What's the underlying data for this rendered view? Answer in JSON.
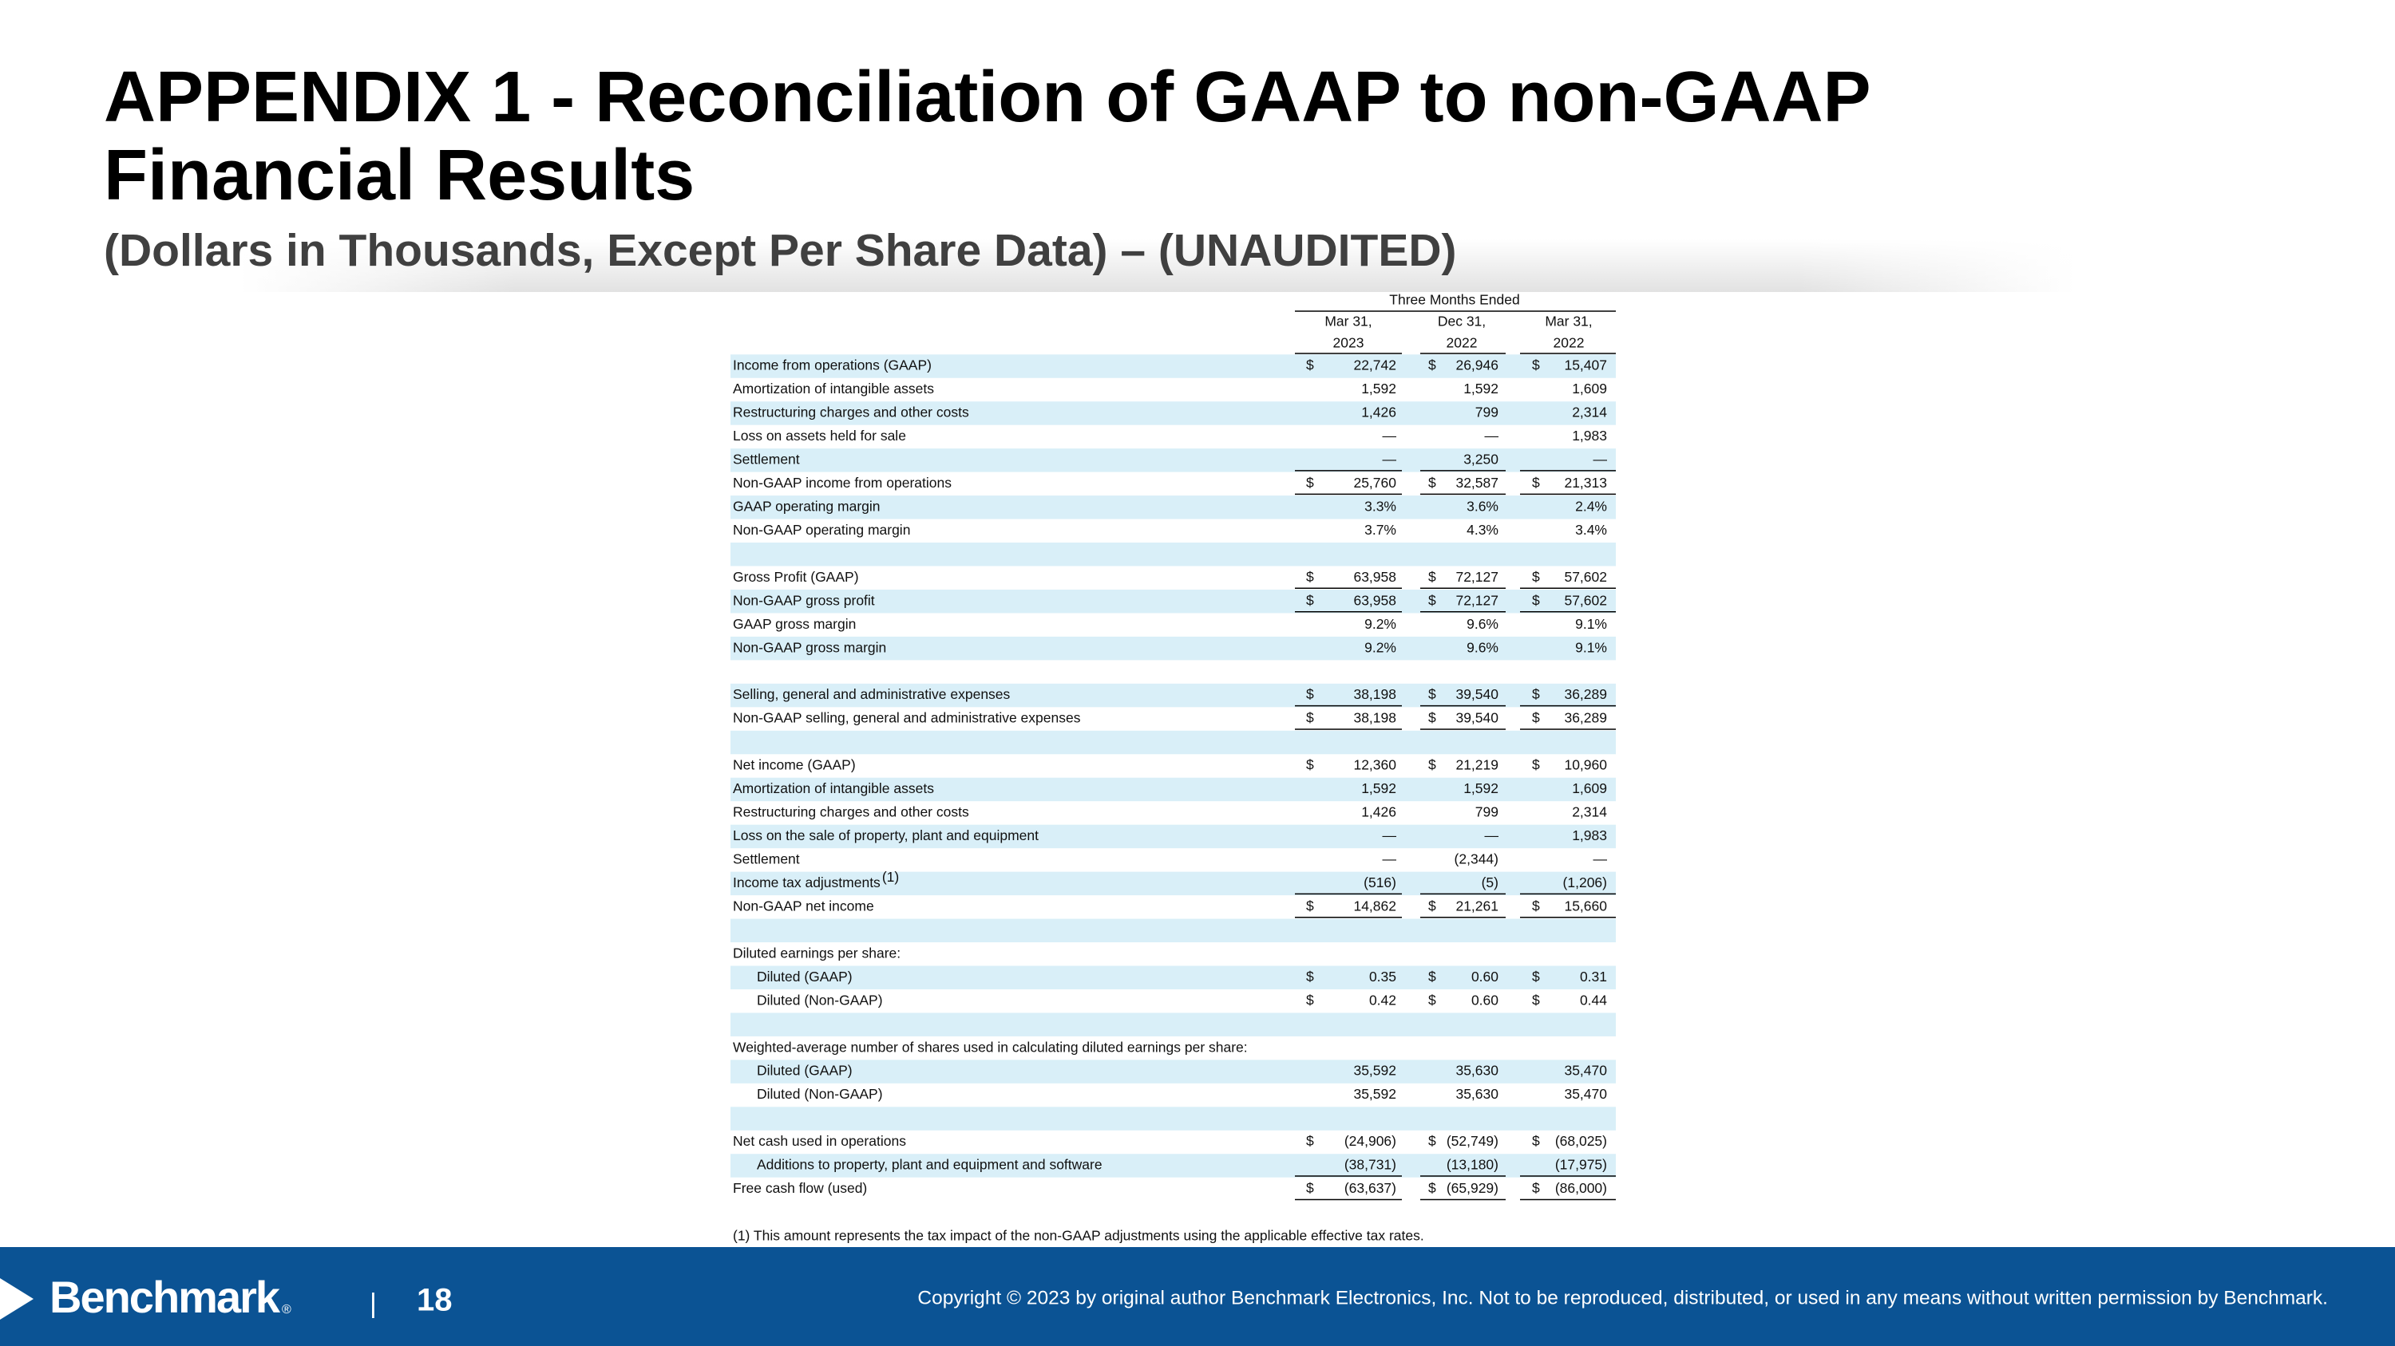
{
  "header": {
    "title_line1": "APPENDIX 1 - Reconciliation of GAAP to non-GAAP",
    "title_line2": "Financial Results",
    "subtitle": "(Dollars in Thousands, Except Per Share Data) – (UNAUDITED)"
  },
  "table": {
    "period_label": "Three Months Ended",
    "columns": [
      {
        "month": "Mar 31,",
        "year": "2023"
      },
      {
        "month": "Dec 31,",
        "year": "2022"
      },
      {
        "month": "Mar 31,",
        "year": "2022"
      }
    ],
    "rows": [
      {
        "label": "Income from operations (GAAP)",
        "currency": "$",
        "values": [
          "22,742",
          "26,946",
          "15,407"
        ]
      },
      {
        "label": "Amortization of intangible assets",
        "values": [
          "1,592",
          "1,592",
          "1,609"
        ]
      },
      {
        "label": "Restructuring charges and other costs",
        "values": [
          "1,426",
          "799",
          "2,314"
        ]
      },
      {
        "label": "Loss on assets held for sale",
        "values": [
          "—",
          "—",
          "1,983"
        ]
      },
      {
        "label": "Settlement",
        "values": [
          "—",
          "3,250",
          "—"
        ]
      },
      {
        "label": "Non-GAAP income from operations",
        "currency": "$",
        "values": [
          "25,760",
          "32,587",
          "21,313"
        ]
      },
      {
        "label": "GAAP operating margin",
        "values": [
          "3.3%",
          "3.6%",
          "2.4%"
        ]
      },
      {
        "label": "Non-GAAP operating margin",
        "values": [
          "3.7%",
          "4.3%",
          "3.4%"
        ]
      },
      {
        "label": "Gross Profit (GAAP)",
        "currency": "$",
        "values": [
          "63,958",
          "72,127",
          "57,602"
        ]
      },
      {
        "label": "Non-GAAP gross profit",
        "currency": "$",
        "values": [
          "63,958",
          "72,127",
          "57,602"
        ]
      },
      {
        "label": "GAAP gross margin",
        "values": [
          "9.2%",
          "9.6%",
          "9.1%"
        ]
      },
      {
        "label": "Non-GAAP gross margin",
        "values": [
          "9.2%",
          "9.6%",
          "9.1%"
        ]
      },
      {
        "label": "Selling, general and administrative expenses",
        "currency": "$",
        "values": [
          "38,198",
          "39,540",
          "36,289"
        ]
      },
      {
        "label": "Non-GAAP selling, general and administrative expenses",
        "currency": "$",
        "values": [
          "38,198",
          "39,540",
          "36,289"
        ]
      },
      {
        "label": "Net income (GAAP)",
        "currency": "$",
        "values": [
          "12,360",
          "21,219",
          "10,960"
        ]
      },
      {
        "label": "Amortization of intangible assets",
        "values": [
          "1,592",
          "1,592",
          "1,609"
        ]
      },
      {
        "label": "Restructuring charges and other costs",
        "values": [
          "1,426",
          "799",
          "2,314"
        ]
      },
      {
        "label": "Loss on the sale of property, plant and equipment",
        "values": [
          "—",
          "—",
          "1,983"
        ]
      },
      {
        "label": "Settlement",
        "values": [
          "—",
          "(2,344)",
          "—"
        ]
      },
      {
        "label": "Income tax adjustments",
        "note": "(1)",
        "values": [
          "(516)",
          "(5)",
          "(1,206)"
        ]
      },
      {
        "label": "Non-GAAP net income",
        "currency": "$",
        "values": [
          "14,862",
          "21,261",
          "15,660"
        ]
      },
      {
        "label": "Diluted earnings per share:"
      },
      {
        "label": "Diluted (GAAP)",
        "currency": "$",
        "values": [
          "0.35",
          "0.60",
          "0.31"
        ]
      },
      {
        "label": "Diluted (Non-GAAP)",
        "currency": "$",
        "values": [
          "0.42",
          "0.60",
          "0.44"
        ]
      },
      {
        "label": "Weighted-average number of shares used in calculating diluted earnings per share:"
      },
      {
        "label": "Diluted (GAAP)",
        "values": [
          "35,592",
          "35,630",
          "35,470"
        ]
      },
      {
        "label": "Diluted (Non-GAAP)",
        "values": [
          "35,592",
          "35,630",
          "35,470"
        ]
      },
      {
        "label": "Net cash used in operations",
        "currency": "$",
        "values": [
          "(24,906)",
          "(52,749)",
          "(68,025)"
        ]
      },
      {
        "label": "Additions to property, plant and equipment and software",
        "values": [
          "(38,731)",
          "(13,180)",
          "(17,975)"
        ]
      },
      {
        "label": "Free cash flow (used)",
        "currency": "$",
        "values": [
          "(63,637)",
          "(65,929)",
          "(86,000)"
        ]
      }
    ]
  },
  "footnote": "(1) This amount represents the tax impact of the non-GAAP adjustments using the applicable effective tax rates.",
  "footer": {
    "logo": "Benchmark",
    "logo_mark": "®",
    "separator": "|",
    "page": "18",
    "copyright": "Copyright © 2023 by original author Benchmark Electronics, Inc. Not to be reproduced, distributed, or used in any means without written permission by Benchmark."
  }
}
